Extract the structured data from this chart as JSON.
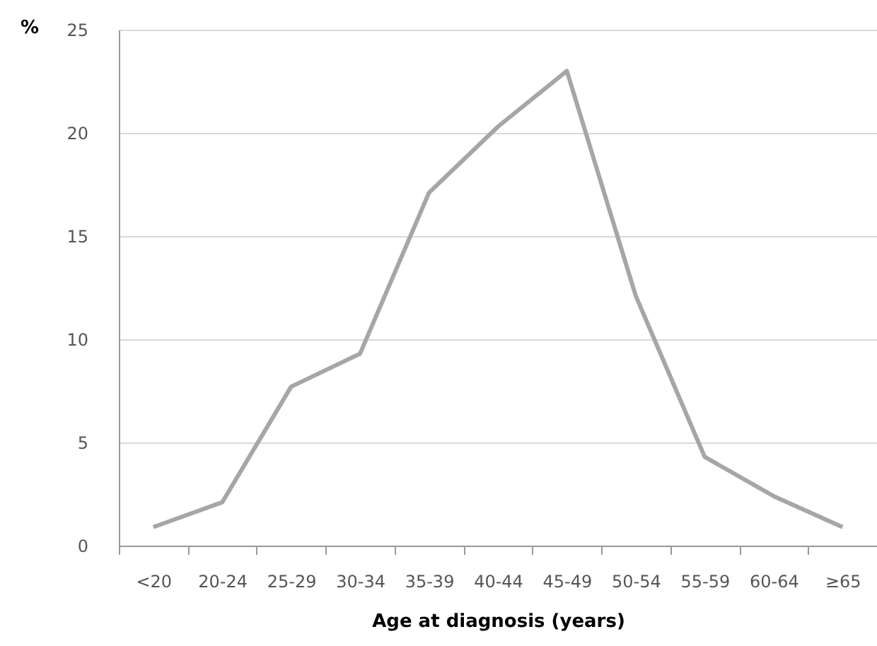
{
  "chart_data": {
    "type": "line",
    "xlabel": "Age at diagnosis (years)",
    "ylabel": "%",
    "categories": [
      "<20",
      "20-24",
      "25-29",
      "30-34",
      "35-39",
      "40-44",
      "45-49",
      "50-54",
      "55-59",
      "60-64",
      "≥65"
    ],
    "series": [
      {
        "color": "#a6a6a6",
        "values": [
          0.9,
          2.1,
          7.7,
          9.3,
          17.1,
          20.3,
          23.0,
          12.1,
          4.3,
          2.4,
          0.9
        ]
      }
    ],
    "ylim": [
      0,
      25
    ],
    "yticks": [
      0,
      5,
      10,
      15,
      20,
      25
    ],
    "grid": "y",
    "legend": false,
    "marker": "none",
    "line_style": "solid"
  }
}
